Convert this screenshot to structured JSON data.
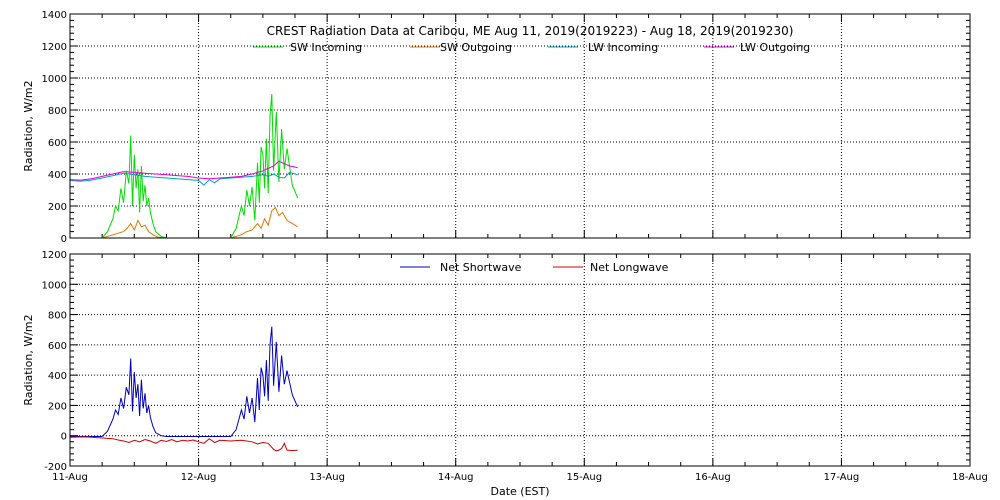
{
  "chart_data": [
    {
      "type": "line",
      "title": "CREST Radiation Data at Caribou, ME   Aug 11, 2019(2019223) - Aug 18, 2019(2019230)",
      "xlabel": "",
      "ylabel": "Radiation, W/m2",
      "ylim": [
        0,
        1400
      ],
      "yticks": [
        "0",
        "200",
        "400",
        "600",
        "800",
        "1000",
        "1200",
        "1400"
      ],
      "xlim": [
        "2019-08-11",
        "2019-08-18"
      ],
      "grid": true,
      "legend_position": "top",
      "series": [
        {
          "name": "SW Incoming",
          "color": "#00dd00",
          "x": [
            "2019-08-11 00:00",
            "2019-08-11 06:00",
            "2019-08-11 07:00",
            "2019-08-11 08:00",
            "2019-08-11 08:30",
            "2019-08-11 09:00",
            "2019-08-11 09:30",
            "2019-08-11 10:00",
            "2019-08-11 10:30",
            "2019-08-11 11:00",
            "2019-08-11 11:20",
            "2019-08-11 11:40",
            "2019-08-11 12:00",
            "2019-08-11 12:20",
            "2019-08-11 12:40",
            "2019-08-11 13:00",
            "2019-08-11 13:20",
            "2019-08-11 13:40",
            "2019-08-11 14:00",
            "2019-08-11 14:20",
            "2019-08-11 14:40",
            "2019-08-11 15:00",
            "2019-08-11 15:30",
            "2019-08-11 16:00",
            "2019-08-11 17:00",
            "2019-08-11 18:00",
            "2019-08-12 00:00",
            "2019-08-12 06:00",
            "2019-08-12 07:00",
            "2019-08-12 08:00",
            "2019-08-12 08:30",
            "2019-08-12 09:00",
            "2019-08-12 09:30",
            "2019-08-12 10:00",
            "2019-08-12 10:30",
            "2019-08-12 11:00",
            "2019-08-12 11:20",
            "2019-08-12 11:40",
            "2019-08-12 12:00",
            "2019-08-12 12:20",
            "2019-08-12 12:40",
            "2019-08-12 13:00",
            "2019-08-12 13:20",
            "2019-08-12 13:40",
            "2019-08-12 14:00",
            "2019-08-12 14:30",
            "2019-08-12 15:00",
            "2019-08-12 15:30",
            "2019-08-12 16:00",
            "2019-08-12 16:30",
            "2019-08-12 17:30",
            "2019-08-12 18:30"
          ],
          "values": [
            0,
            0,
            40,
            120,
            200,
            170,
            310,
            220,
            420,
            340,
            640,
            200,
            520,
            310,
            430,
            160,
            450,
            230,
            330,
            200,
            250,
            160,
            90,
            40,
            10,
            0,
            0,
            0,
            60,
            200,
            140,
            300,
            200,
            320,
            110,
            470,
            220,
            570,
            520,
            310,
            620,
            280,
            760,
            900,
            420,
            790,
            350,
            680,
            430,
            560,
            330,
            250
          ]
        },
        {
          "name": "SW Outgoing",
          "color": "#e07800",
          "x": [
            "2019-08-11 00:00",
            "2019-08-11 06:00",
            "2019-08-11 08:00",
            "2019-08-11 09:00",
            "2019-08-11 10:00",
            "2019-08-11 10:40",
            "2019-08-11 11:20",
            "2019-08-11 12:00",
            "2019-08-11 12:40",
            "2019-08-11 13:20",
            "2019-08-11 14:00",
            "2019-08-11 14:40",
            "2019-08-11 15:30",
            "2019-08-11 16:30",
            "2019-08-11 18:00",
            "2019-08-12 00:00",
            "2019-08-12 06:00",
            "2019-08-12 08:00",
            "2019-08-12 09:00",
            "2019-08-12 10:00",
            "2019-08-12 11:00",
            "2019-08-12 11:40",
            "2019-08-12 12:20",
            "2019-08-12 13:00",
            "2019-08-12 13:40",
            "2019-08-12 14:20",
            "2019-08-12 15:00",
            "2019-08-12 15:40",
            "2019-08-12 16:30",
            "2019-08-12 17:30",
            "2019-08-12 18:30"
          ],
          "values": [
            0,
            0,
            20,
            30,
            40,
            60,
            90,
            50,
            110,
            70,
            80,
            40,
            20,
            5,
            0,
            0,
            0,
            20,
            40,
            50,
            90,
            60,
            120,
            80,
            170,
            190,
            140,
            160,
            110,
            90,
            70
          ]
        },
        {
          "name": "LW Incoming",
          "color": "#00a0c8",
          "x": [
            "2019-08-11 00:00",
            "2019-08-11 02:00",
            "2019-08-11 04:00",
            "2019-08-11 06:00",
            "2019-08-11 08:00",
            "2019-08-11 10:00",
            "2019-08-11 12:00",
            "2019-08-11 14:00",
            "2019-08-11 16:00",
            "2019-08-11 18:00",
            "2019-08-11 20:00",
            "2019-08-11 22:00",
            "2019-08-12 00:00",
            "2019-08-12 01:00",
            "2019-08-12 02:00",
            "2019-08-12 03:00",
            "2019-08-12 04:00",
            "2019-08-12 06:00",
            "2019-08-12 08:00",
            "2019-08-12 10:00",
            "2019-08-12 12:00",
            "2019-08-12 13:00",
            "2019-08-12 14:00",
            "2019-08-12 15:00",
            "2019-08-12 16:00",
            "2019-08-12 17:00",
            "2019-08-12 18:30"
          ],
          "values": [
            360,
            355,
            362,
            375,
            390,
            405,
            395,
            385,
            380,
            375,
            370,
            365,
            360,
            330,
            365,
            345,
            370,
            375,
            380,
            385,
            395,
            385,
            400,
            380,
            375,
            410,
            395
          ]
        },
        {
          "name": "LW Outgoing",
          "color": "#e000e0",
          "x": [
            "2019-08-11 00:00",
            "2019-08-11 02:00",
            "2019-08-11 04:00",
            "2019-08-11 06:00",
            "2019-08-11 08:00",
            "2019-08-11 10:00",
            "2019-08-11 12:00",
            "2019-08-11 14:00",
            "2019-08-11 16:00",
            "2019-08-11 18:00",
            "2019-08-11 20:00",
            "2019-08-11 22:00",
            "2019-08-12 00:00",
            "2019-08-12 02:00",
            "2019-08-12 04:00",
            "2019-08-12 06:00",
            "2019-08-12 08:00",
            "2019-08-12 10:00",
            "2019-08-12 12:00",
            "2019-08-12 14:00",
            "2019-08-12 15:00",
            "2019-08-12 16:00",
            "2019-08-12 17:00",
            "2019-08-12 18:30"
          ],
          "values": [
            365,
            362,
            370,
            385,
            400,
            415,
            410,
            405,
            400,
            395,
            390,
            385,
            375,
            370,
            375,
            380,
            385,
            400,
            420,
            450,
            480,
            465,
            450,
            440
          ]
        }
      ]
    },
    {
      "type": "line",
      "title": "",
      "xlabel": "Date (EST)",
      "ylabel": "Radiation, W/m2",
      "ylim": [
        -200,
        1200
      ],
      "yticks": [
        "-200",
        "0",
        "200",
        "400",
        "600",
        "800",
        "1000",
        "1200"
      ],
      "xlim": [
        "2019-08-11",
        "2019-08-18"
      ],
      "xticks": [
        "11-Aug",
        "12-Aug",
        "13-Aug",
        "14-Aug",
        "15-Aug",
        "16-Aug",
        "17-Aug",
        "18-Aug"
      ],
      "grid": true,
      "legend_position": "top",
      "series": [
        {
          "name": "Net Shortwave",
          "color": "#0000c0",
          "x": [
            "2019-08-11 00:00",
            "2019-08-11 06:00",
            "2019-08-11 07:00",
            "2019-08-11 08:00",
            "2019-08-11 08:30",
            "2019-08-11 09:00",
            "2019-08-11 09:30",
            "2019-08-11 10:00",
            "2019-08-11 10:30",
            "2019-08-11 11:00",
            "2019-08-11 11:20",
            "2019-08-11 11:40",
            "2019-08-11 12:00",
            "2019-08-11 12:20",
            "2019-08-11 12:40",
            "2019-08-11 13:00",
            "2019-08-11 13:20",
            "2019-08-11 13:40",
            "2019-08-11 14:00",
            "2019-08-11 14:20",
            "2019-08-11 14:40",
            "2019-08-11 15:00",
            "2019-08-11 15:30",
            "2019-08-11 16:00",
            "2019-08-11 17:00",
            "2019-08-11 18:00",
            "2019-08-12 00:00",
            "2019-08-12 06:00",
            "2019-08-12 07:00",
            "2019-08-12 08:00",
            "2019-08-12 08:30",
            "2019-08-12 09:00",
            "2019-08-12 09:30",
            "2019-08-12 10:00",
            "2019-08-12 10:30",
            "2019-08-12 11:00",
            "2019-08-12 11:20",
            "2019-08-12 11:40",
            "2019-08-12 12:00",
            "2019-08-12 12:20",
            "2019-08-12 12:40",
            "2019-08-12 13:00",
            "2019-08-12 13:20",
            "2019-08-12 13:40",
            "2019-08-12 14:00",
            "2019-08-12 14:30",
            "2019-08-12 15:00",
            "2019-08-12 15:30",
            "2019-08-12 16:00",
            "2019-08-12 16:30",
            "2019-08-12 17:30",
            "2019-08-12 18:30"
          ],
          "values": [
            -5,
            -5,
            30,
            110,
            170,
            140,
            250,
            180,
            320,
            270,
            510,
            160,
            420,
            250,
            340,
            130,
            370,
            180,
            280,
            150,
            200,
            120,
            60,
            20,
            0,
            -5,
            -5,
            -5,
            40,
            170,
            110,
            260,
            150,
            250,
            90,
            380,
            170,
            450,
            400,
            260,
            500,
            230,
            600,
            720,
            330,
            620,
            290,
            530,
            340,
            430,
            270,
            190
          ]
        },
        {
          "name": "Net Longwave",
          "color": "#d00000",
          "x": [
            "2019-08-11 00:00",
            "2019-08-11 03:00",
            "2019-08-11 06:00",
            "2019-08-11 08:00",
            "2019-08-11 09:00",
            "2019-08-11 10:00",
            "2019-08-11 11:00",
            "2019-08-11 12:00",
            "2019-08-11 13:00",
            "2019-08-11 14:00",
            "2019-08-11 15:00",
            "2019-08-11 16:00",
            "2019-08-11 17:00",
            "2019-08-11 18:00",
            "2019-08-11 19:00",
            "2019-08-11 20:00",
            "2019-08-11 21:00",
            "2019-08-11 22:00",
            "2019-08-11 23:00",
            "2019-08-12 00:00",
            "2019-08-12 01:00",
            "2019-08-12 02:00",
            "2019-08-12 03:00",
            "2019-08-12 04:00",
            "2019-08-12 06:00",
            "2019-08-12 08:00",
            "2019-08-12 10:00",
            "2019-08-12 11:00",
            "2019-08-12 12:00",
            "2019-08-12 13:00",
            "2019-08-12 14:00",
            "2019-08-12 14:30",
            "2019-08-12 15:00",
            "2019-08-12 15:30",
            "2019-08-12 16:00",
            "2019-08-12 16:30",
            "2019-08-12 17:30",
            "2019-08-12 18:30"
          ],
          "values": [
            -10,
            -8,
            -15,
            -20,
            -28,
            -35,
            -45,
            -30,
            -40,
            -25,
            -35,
            -50,
            -30,
            -38,
            -25,
            -40,
            -30,
            -35,
            -28,
            -40,
            -50,
            -20,
            -45,
            -30,
            -35,
            -30,
            -40,
            -55,
            -45,
            -50,
            -90,
            -100,
            -95,
            -85,
            -50,
            -95,
            -98,
            -95
          ]
        }
      ]
    }
  ]
}
